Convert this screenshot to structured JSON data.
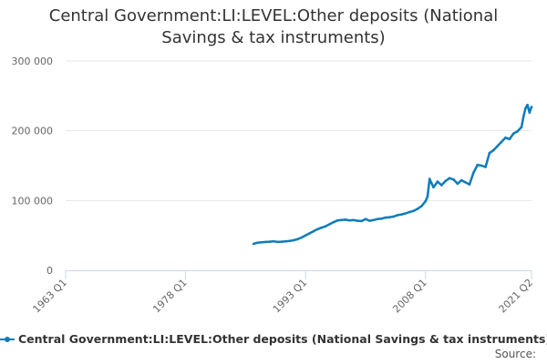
{
  "chart_data": {
    "type": "line",
    "title_lines": [
      "Central Government:LI:LEVEL:Other deposits (National",
      "Savings & tax instruments)"
    ],
    "xlabel": "",
    "ylabel": "",
    "x_range": [
      "1963 Q1",
      "2021 Q2"
    ],
    "ylim": [
      0,
      300000
    ],
    "y_ticks": [
      0,
      100000,
      200000,
      300000
    ],
    "y_tick_labels": [
      "0",
      "100 000",
      "200 000",
      "300 000"
    ],
    "x_ticks": [
      {
        "year": 1963.0,
        "label": "1963 Q1"
      },
      {
        "year": 1978.0,
        "label": "1978 Q1"
      },
      {
        "year": 1993.0,
        "label": "1993 Q1"
      },
      {
        "year": 2008.0,
        "label": "2008 Q1"
      },
      {
        "year": 2021.25,
        "label": "2021 Q2"
      }
    ],
    "grid": true,
    "legend_position": "bottom",
    "series": [
      {
        "name": "Central Government:LI:LEVEL:Other deposits (National Savings & tax instruments)",
        "color": "#0e7cba",
        "x": [
          1986.5,
          1987,
          1987.5,
          1988,
          1988.5,
          1989,
          1989.5,
          1990,
          1990.5,
          1991,
          1991.5,
          1992,
          1992.5,
          1993,
          1993.5,
          1994,
          1994.5,
          1995,
          1995.5,
          1996,
          1996.5,
          1997,
          1997.5,
          1998,
          1998.5,
          1999,
          1999.5,
          2000,
          2000.5,
          2001,
          2001.5,
          2002,
          2002.5,
          2003,
          2003.5,
          2004,
          2004.5,
          2005,
          2005.5,
          2006,
          2006.5,
          2007,
          2007.5,
          2008,
          2008.25,
          2008.5,
          2008.75,
          2009,
          2009.5,
          2010,
          2010.5,
          2011,
          2011.5,
          2012,
          2012.5,
          2013,
          2013.5,
          2014,
          2014.5,
          2015,
          2015.5,
          2016,
          2016.5,
          2017,
          2017.5,
          2018,
          2018.5,
          2019,
          2019.5,
          2020,
          2020.25,
          2020.5,
          2020.75,
          2021,
          2021.25
        ],
        "y": [
          38000,
          39500,
          40000,
          40500,
          41000,
          41500,
          40500,
          41000,
          41500,
          42000,
          43000,
          44500,
          47000,
          50000,
          53000,
          56000,
          59000,
          61000,
          63000,
          66000,
          69000,
          71500,
          72000,
          72500,
          71500,
          72000,
          71000,
          70500,
          73500,
          71000,
          72000,
          73500,
          74000,
          75500,
          76000,
          77000,
          79000,
          80000,
          81500,
          83500,
          85000,
          88000,
          92000,
          99000,
          106000,
          131000,
          125000,
          119000,
          127000,
          122000,
          128000,
          132000,
          130000,
          124000,
          129000,
          126000,
          123000,
          140000,
          151000,
          150000,
          148000,
          168000,
          172000,
          178000,
          184000,
          190000,
          188000,
          196000,
          199000,
          205000,
          220000,
          232000,
          237000,
          226000,
          234000
        ]
      }
    ],
    "source_label": "Source:"
  }
}
